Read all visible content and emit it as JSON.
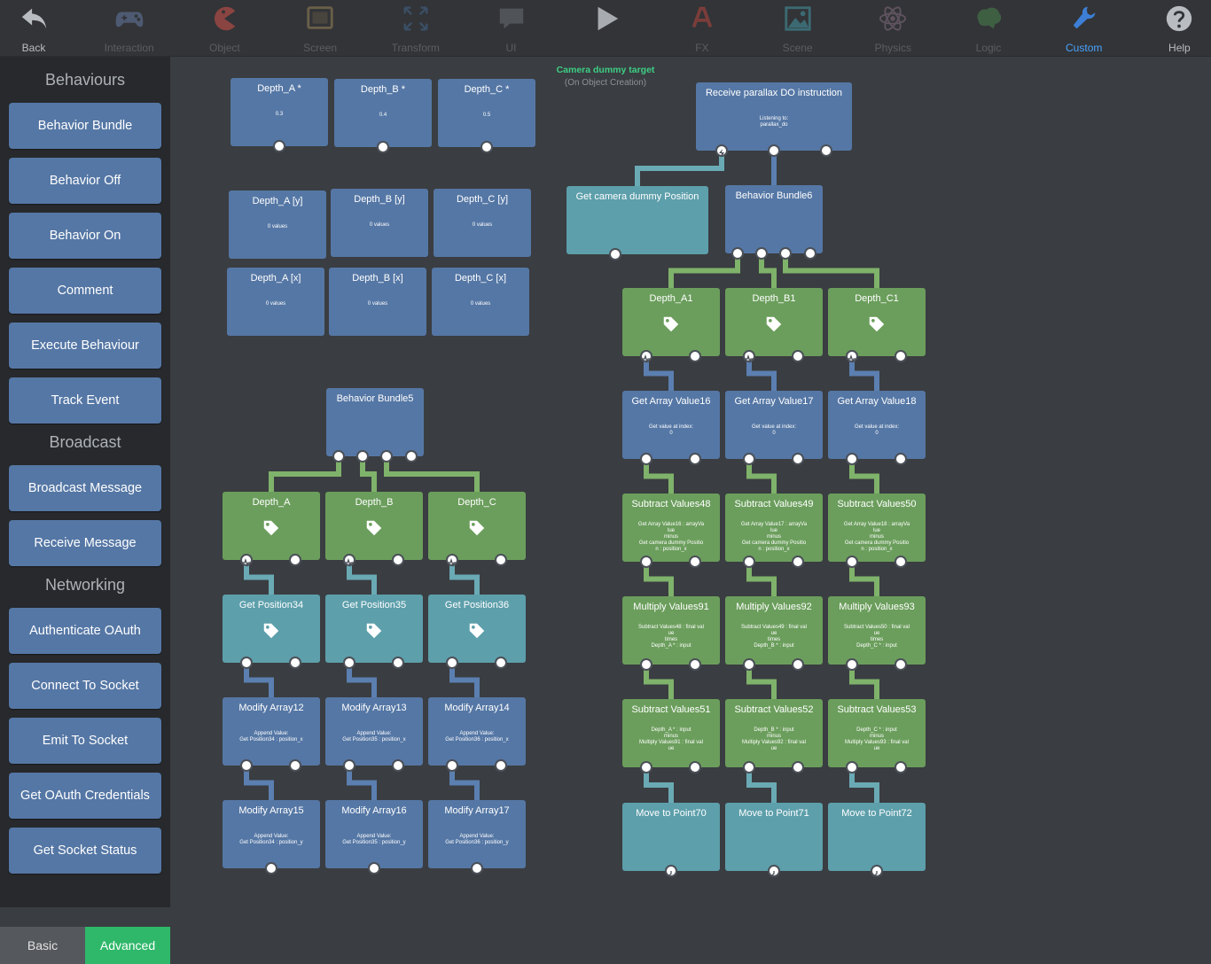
{
  "toolbar": {
    "items": [
      {
        "label": "Back",
        "icon": "back-arrow-icon",
        "state": "on"
      },
      {
        "label": "Interaction",
        "icon": "gamepad-icon",
        "state": "dim"
      },
      {
        "label": "Object",
        "icon": "pacman-icon",
        "state": "dim"
      },
      {
        "label": "Screen",
        "icon": "screen-icon",
        "state": "dim"
      },
      {
        "label": "Transform",
        "icon": "expand-icon",
        "state": "dim"
      },
      {
        "label": "UI",
        "icon": "speech-bubble-icon",
        "state": "dim"
      },
      {
        "label": "",
        "icon": "play-icon",
        "state": "on"
      },
      {
        "label": "FX",
        "icon": "fx-icon",
        "state": "dim"
      },
      {
        "label": "Scene",
        "icon": "picture-icon",
        "state": "dim"
      },
      {
        "label": "Physics",
        "icon": "atom-icon",
        "state": "dim"
      },
      {
        "label": "Logic",
        "icon": "brain-icon",
        "state": "dim"
      },
      {
        "label": "Custom",
        "icon": "wrench-icon",
        "state": "accent"
      },
      {
        "label": "Help",
        "icon": "help-icon",
        "state": "on"
      }
    ]
  },
  "sidebar": {
    "sections": [
      {
        "title": "Behaviours",
        "items": [
          "Behavior Bundle",
          "Behavior Off",
          "Behavior On",
          "Comment",
          "Execute Behaviour",
          "Track Event"
        ]
      },
      {
        "title": "Broadcast",
        "items": [
          "Broadcast Message",
          "Receive Message"
        ]
      },
      {
        "title": "Networking",
        "items": [
          "Authenticate OAuth",
          "Connect To Socket",
          "Emit To Socket",
          "Get OAuth Credentials",
          "Get Socket Status"
        ]
      }
    ],
    "modes": {
      "basic": "Basic",
      "advanced": "Advanced"
    }
  },
  "colors": {
    "blue_node": "#5577a5",
    "green_node": "#6b9e5c",
    "teal_node": "#5d9fab",
    "advanced_mode": "#2fb86a",
    "accent": "#4aa3ff"
  },
  "graph": {
    "camera_label": {
      "title": "Camera dummy target",
      "subtitle": "(On Object Creation)"
    },
    "nodes": [
      {
        "id": "depth-a-star",
        "title": "Depth_A *",
        "detail": "0.3",
        "color": "blue"
      },
      {
        "id": "depth-b-star",
        "title": "Depth_B *",
        "detail": "0.4",
        "color": "blue"
      },
      {
        "id": "depth-c-star",
        "title": "Depth_C *",
        "detail": "0.5",
        "color": "blue"
      },
      {
        "id": "depth-a-y",
        "title": "Depth_A [y]",
        "detail": "0 values",
        "color": "blue"
      },
      {
        "id": "depth-b-y",
        "title": "Depth_B [y]",
        "detail": "0 values",
        "color": "blue"
      },
      {
        "id": "depth-c-y",
        "title": "Depth_C [y]",
        "detail": "0 values",
        "color": "blue"
      },
      {
        "id": "depth-a-x",
        "title": "Depth_A [x]",
        "detail": "0 values",
        "color": "blue"
      },
      {
        "id": "depth-b-x",
        "title": "Depth_B [x]",
        "detail": "0 values",
        "color": "blue"
      },
      {
        "id": "depth-c-x",
        "title": "Depth_C [x]",
        "detail": "0 values",
        "color": "blue"
      },
      {
        "id": "bundle5",
        "title": "Behavior Bundle5",
        "detail": "",
        "color": "blue"
      },
      {
        "id": "depth-a",
        "title": "Depth_A",
        "detail": "",
        "color": "green"
      },
      {
        "id": "depth-b",
        "title": "Depth_B",
        "detail": "",
        "color": "green"
      },
      {
        "id": "depth-c",
        "title": "Depth_C",
        "detail": "",
        "color": "green"
      },
      {
        "id": "getpos34",
        "title": "Get Position34",
        "detail": "",
        "color": "teal"
      },
      {
        "id": "getpos35",
        "title": "Get Position35",
        "detail": "",
        "color": "teal"
      },
      {
        "id": "getpos36",
        "title": "Get Position36",
        "detail": "",
        "color": "teal"
      },
      {
        "id": "modarr12",
        "title": "Modify Array12",
        "detail": "Append Value:\nGet Position34 : position_x",
        "color": "blue"
      },
      {
        "id": "modarr13",
        "title": "Modify Array13",
        "detail": "Append Value:\nGet Position35 : position_x",
        "color": "blue"
      },
      {
        "id": "modarr14",
        "title": "Modify Array14",
        "detail": "Append Value:\nGet Position36 : position_x",
        "color": "blue"
      },
      {
        "id": "modarr15",
        "title": "Modify Array15",
        "detail": "Append Value:\nGet Position34 : position_y",
        "color": "blue"
      },
      {
        "id": "modarr16",
        "title": "Modify Array16",
        "detail": "Append Value:\nGet Position35 : position_y",
        "color": "blue"
      },
      {
        "id": "modarr17",
        "title": "Modify Array17",
        "detail": "Append Value:\nGet Position36 : position_y",
        "color": "blue"
      },
      {
        "id": "receive",
        "title": "Receive parallax DO instruction",
        "detail": "Listening to:\nparallax_do",
        "color": "blue"
      },
      {
        "id": "getcam",
        "title": "Get camera dummy Position",
        "detail": "",
        "color": "teal"
      },
      {
        "id": "bundle6",
        "title": "Behavior Bundle6",
        "detail": "",
        "color": "blue"
      },
      {
        "id": "depth-a1",
        "title": "Depth_A1",
        "detail": "",
        "color": "green"
      },
      {
        "id": "depth-b1",
        "title": "Depth_B1",
        "detail": "",
        "color": "green"
      },
      {
        "id": "depth-c1",
        "title": "Depth_C1",
        "detail": "",
        "color": "green"
      },
      {
        "id": "gav16",
        "title": "Get Array Value16",
        "detail": "Get value at index:\n0",
        "color": "blue"
      },
      {
        "id": "gav17",
        "title": "Get Array Value17",
        "detail": "Get value at index:\n0",
        "color": "blue"
      },
      {
        "id": "gav18",
        "title": "Get Array Value18",
        "detail": "Get value at index:\n0",
        "color": "blue"
      },
      {
        "id": "sub48",
        "title": "Subtract Values48",
        "detail": "Get Array Value16 : arrayVa\nlue\nminus\nGet camera dummy Positio\nn : position_x",
        "color": "green"
      },
      {
        "id": "sub49",
        "title": "Subtract Values49",
        "detail": "Get Array Value17 : arrayVa\nlue\nminus\nGet camera dummy Positio\nn : position_x",
        "color": "green"
      },
      {
        "id": "sub50",
        "title": "Subtract Values50",
        "detail": "Get Array Value18 : arrayVa\nlue\nminus\nGet camera dummy Positio\nn : position_x",
        "color": "green"
      },
      {
        "id": "mul91",
        "title": "Multiply Values91",
        "detail": "Subtract Values48 : final val\nue\ntimes\nDepth_A * : input",
        "color": "green"
      },
      {
        "id": "mul92",
        "title": "Multiply Values92",
        "detail": "Subtract Values49 : final val\nue\ntimes\nDepth_B * : input",
        "color": "green"
      },
      {
        "id": "mul93",
        "title": "Multiply Values93",
        "detail": "Subtract Values50 : final val\nue\ntimes\nDepth_C * : input",
        "color": "green"
      },
      {
        "id": "sub51",
        "title": "Subtract Values51",
        "detail": "Depth_A * : input\nminus\nMultiply Values91 : final val\nue",
        "color": "green"
      },
      {
        "id": "sub52",
        "title": "Subtract Values52",
        "detail": "Depth_B * : input\nminus\nMultiply Values92 : final val\nue",
        "color": "green"
      },
      {
        "id": "sub53",
        "title": "Subtract Values53",
        "detail": "Depth_C * : input\nminus\nMultiply Values93 : final val\nue",
        "color": "green"
      },
      {
        "id": "move70",
        "title": "Move to Point70",
        "detail": "",
        "color": "teal"
      },
      {
        "id": "move71",
        "title": "Move to Point71",
        "detail": "",
        "color": "teal"
      },
      {
        "id": "move72",
        "title": "Move to Point72",
        "detail": "",
        "color": "teal"
      }
    ]
  }
}
